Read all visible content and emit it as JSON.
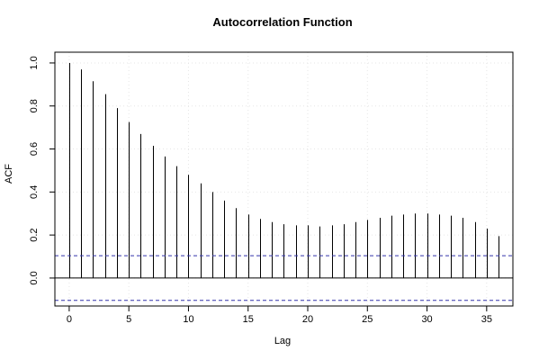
{
  "chart_data": {
    "type": "bar",
    "title": "Autocorrelation Function",
    "xlabel": "Lag",
    "ylabel": "ACF",
    "xlim": [
      -1.2,
      37.2
    ],
    "ylim": [
      -0.13,
      1.05
    ],
    "x_ticks": [
      0,
      5,
      10,
      15,
      20,
      25,
      30,
      35
    ],
    "y_ticks": [
      0.0,
      0.2,
      0.4,
      0.6,
      0.8,
      1.0
    ],
    "x_tick_labels": [
      "0",
      "5",
      "10",
      "15",
      "20",
      "25",
      "30",
      "35"
    ],
    "y_tick_labels": [
      "0.0",
      "0.2",
      "0.4",
      "0.6",
      "0.8",
      "1.0"
    ],
    "grid": true,
    "confidence_band": 0.104,
    "confidence_color": "#3333aa",
    "lags": [
      0,
      1,
      2,
      3,
      4,
      5,
      6,
      7,
      8,
      9,
      10,
      11,
      12,
      13,
      14,
      15,
      16,
      17,
      18,
      19,
      20,
      21,
      22,
      23,
      24,
      25,
      26,
      27,
      28,
      29,
      30,
      31,
      32,
      33,
      34,
      35,
      36
    ],
    "values": [
      1.0,
      0.97,
      0.915,
      0.855,
      0.79,
      0.725,
      0.67,
      0.615,
      0.565,
      0.52,
      0.48,
      0.44,
      0.4,
      0.36,
      0.325,
      0.295,
      0.275,
      0.26,
      0.25,
      0.245,
      0.245,
      0.24,
      0.245,
      0.25,
      0.26,
      0.27,
      0.28,
      0.29,
      0.295,
      0.3,
      0.3,
      0.295,
      0.29,
      0.28,
      0.26,
      0.23,
      0.195
    ]
  }
}
